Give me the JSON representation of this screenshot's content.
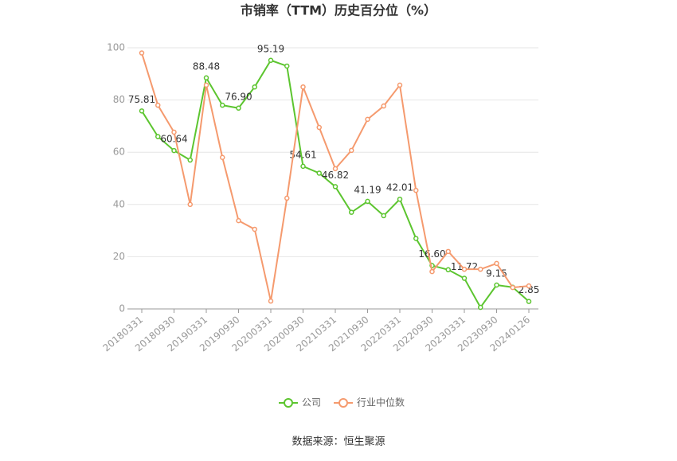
{
  "chart_data": {
    "type": "line",
    "title": "市销率（TTM）历史百分位（%）",
    "source": "数据来源：恒生聚源",
    "categories": [
      "20180331",
      null,
      "20180930",
      null,
      "20190331",
      null,
      "20190930",
      null,
      "20200331",
      null,
      "20200930",
      null,
      "20210331",
      null,
      "20210930",
      null,
      "20220331",
      null,
      "20220930",
      null,
      "20230331",
      null,
      "20230930",
      null,
      "20240126"
    ],
    "series": [
      {
        "name": "公司",
        "color": "#5cc52f",
        "values": [
          75.81,
          66,
          60.64,
          57,
          88.48,
          78,
          76.9,
          85,
          95.19,
          93,
          54.61,
          52,
          46.82,
          37,
          41.19,
          35.7,
          42.01,
          27,
          16.6,
          15,
          11.72,
          0.6,
          9.15,
          8.3,
          2.85
        ],
        "value_labels": [
          "75.81",
          null,
          "60.64",
          null,
          "88.48",
          null,
          "76.90",
          null,
          "95.19",
          null,
          "54.61",
          null,
          "46.82",
          null,
          "41.19",
          null,
          "42.01",
          null,
          "16.60",
          null,
          "11.72",
          null,
          "9.15",
          null,
          "2.85"
        ]
      },
      {
        "name": "行业中位数",
        "color": "#f59a6e",
        "values": [
          98,
          78,
          67.7,
          40,
          85.7,
          58,
          33.8,
          30.5,
          3,
          42.4,
          85,
          69.5,
          53.7,
          60.7,
          72.6,
          77.7,
          85.7,
          45.4,
          14.3,
          22,
          15.2,
          15.2,
          17.4,
          8.2,
          8.8
        ]
      }
    ],
    "ylim": [
      0,
      100
    ],
    "yticks": [
      0,
      20,
      40,
      60,
      80,
      100
    ],
    "grid": true
  }
}
